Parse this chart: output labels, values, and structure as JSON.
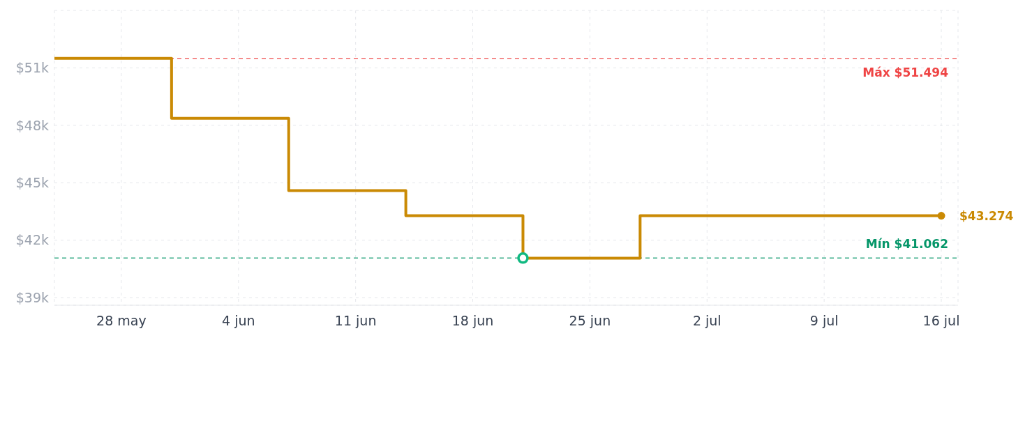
{
  "chart_data": {
    "type": "step",
    "series": [
      {
        "color": "#ca8a04",
        "x": [
          "--05-24",
          "--05-31",
          "--06-07",
          "--06-14",
          "--06-21",
          "--06-28",
          "--07-16"
        ],
        "values": [
          51494,
          48370,
          44590,
          43274,
          41062,
          43274,
          43274
        ],
        "marker": "none"
      },
      {
        "type": "scatter",
        "color": "#ca8a04",
        "x": [
          "--07-16"
        ],
        "values": [
          43274
        ],
        "marker": "circle"
      },
      {
        "type": "scatter",
        "color": "#10b981",
        "x": [
          "--06-21"
        ],
        "values": [
          41062
        ],
        "marker": "circle"
      }
    ],
    "xlim": [
      "--05-24",
      "--07-17"
    ],
    "xticks": [
      {
        "value": "--05-28",
        "label": "28 may"
      },
      {
        "value": "--06-04",
        "label": "4 jun"
      },
      {
        "value": "--06-11",
        "label": "11 jun"
      },
      {
        "value": "--06-18",
        "label": "18 jun"
      },
      {
        "value": "--06-25",
        "label": "25 jun"
      },
      {
        "value": "--07-02",
        "label": "2 jul"
      },
      {
        "value": "--07-09",
        "label": "9 jul"
      },
      {
        "value": "--07-16",
        "label": "16 jul"
      }
    ],
    "ylim": [
      38600,
      54000
    ],
    "yticks": [
      {
        "value": 39000,
        "label": "$39k"
      },
      {
        "value": 42000,
        "label": "$42k"
      },
      {
        "value": 45000,
        "label": "$45k"
      },
      {
        "value": 48000,
        "label": "$48k"
      },
      {
        "value": 51000,
        "label": "$51k"
      }
    ],
    "ref_lines": [
      {
        "axis": "y",
        "value": 51494,
        "label": "Máx $51.494",
        "color": "#ef4444",
        "line_style": "dashed"
      },
      {
        "axis": "y",
        "value": 41062,
        "label": "Mín $41.062",
        "color": "#059669",
        "line_style": "dashed"
      }
    ],
    "annotations": [
      {
        "text": "$43.274",
        "x": "--07-16",
        "y": 43274
      }
    ],
    "grid": true,
    "legend": false,
    "line_style": "solid"
  }
}
